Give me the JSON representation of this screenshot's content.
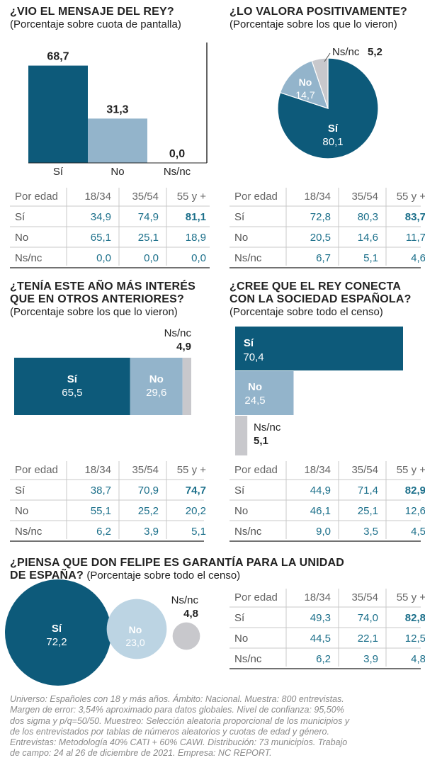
{
  "colors": {
    "dark": "#0d5a7a",
    "light": "#93b4cb",
    "pale": "#bcd4e3",
    "grey": "#c8c8cc",
    "teal_text": "#1b6f8a"
  },
  "chart_data": [
    {
      "id": "vio",
      "type": "bar",
      "title": "¿VIO EL MENSAJE DEL REY?",
      "subtitle": "(Porcentaje sobre cuota de pantalla)",
      "categories": [
        "Sí",
        "No",
        "Ns/nc"
      ],
      "values": [
        68.7,
        31.3,
        0.0
      ],
      "value_labels": [
        "68,7",
        "31,3",
        "0,0"
      ],
      "ylim": [
        0,
        70
      ],
      "table": {
        "header": [
          "Por edad",
          "18/34",
          "35/54",
          "55 y +"
        ],
        "rows": [
          [
            "Sí",
            "34,9",
            "74,9",
            "81,1"
          ],
          [
            "No",
            "65,1",
            "25,1",
            "18,9"
          ],
          [
            "Ns/nc",
            "0,0",
            "0,0",
            "0,0"
          ]
        ]
      }
    },
    {
      "id": "valora",
      "type": "pie",
      "title": "¿LO VALORA POSITIVAMENTE?",
      "subtitle": "(Porcentaje sobre los que lo vieron)",
      "categories": [
        "Sí",
        "No",
        "Ns/nc"
      ],
      "values": [
        80.1,
        14.7,
        5.2
      ],
      "value_labels": [
        "80,1",
        "14,7",
        "5,2"
      ],
      "table": {
        "header": [
          "Por edad",
          "18/34",
          "35/54",
          "55 y +"
        ],
        "rows": [
          [
            "Sí",
            "72,8",
            "80,3",
            "83,7"
          ],
          [
            "No",
            "20,5",
            "14,6",
            "11,7"
          ],
          [
            "Ns/nc",
            "6,7",
            "5,1",
            "4,6"
          ]
        ]
      }
    },
    {
      "id": "interes",
      "type": "bar",
      "title_lines": [
        "¿TENÍA ESTE AÑO MÁS INTERÉS",
        "QUE EN OTROS ANTERIORES?"
      ],
      "subtitle": "(Porcentaje sobre los que lo vieron)",
      "categories": [
        "Sí",
        "No",
        "Ns/nc"
      ],
      "values": [
        65.5,
        29.6,
        4.9
      ],
      "value_labels": [
        "65,5",
        "29,6",
        "4,9"
      ],
      "table": {
        "header": [
          "Por edad",
          "18/34",
          "35/54",
          "55 y +"
        ],
        "rows": [
          [
            "Sí",
            "38,7",
            "70,9",
            "74,7"
          ],
          [
            "No",
            "55,1",
            "25,2",
            "20,2"
          ],
          [
            "Ns/nc",
            "6,2",
            "3,9",
            "5,1"
          ]
        ]
      }
    },
    {
      "id": "conecta",
      "type": "bar",
      "title_lines": [
        "¿CREE QUE EL REY CONECTA",
        "CON LA SOCIEDAD ESPAÑOLA?"
      ],
      "subtitle": "(Porcentaje sobre todo el censo)",
      "categories": [
        "Sí",
        "No",
        "Ns/nc"
      ],
      "values": [
        70.4,
        24.5,
        5.1
      ],
      "value_labels": [
        "70,4",
        "24,5",
        "5,1"
      ],
      "xlim": [
        0,
        70.4
      ],
      "table": {
        "header": [
          "Por edad",
          "18/34",
          "35/54",
          "55 y +"
        ],
        "rows": [
          [
            "Sí",
            "44,9",
            "71,4",
            "82,9"
          ],
          [
            "No",
            "46,1",
            "25,1",
            "12,6"
          ],
          [
            "Ns/nc",
            "9,0",
            "3,5",
            "4,5"
          ]
        ]
      }
    },
    {
      "id": "garantia",
      "type": "bubble",
      "title_lines": [
        "¿PIENSA QUE DON FELIPE ES GARANTÍA PARA LA UNIDAD",
        "DE ESPAÑA?"
      ],
      "subtitle": "(Porcentaje sobre todo el censo)",
      "categories": [
        "Sí",
        "No",
        "Ns/nc"
      ],
      "values": [
        72.2,
        23.0,
        4.8
      ],
      "value_labels": [
        "72,2",
        "23,0",
        "4,8"
      ],
      "table": {
        "header": [
          "Por edad",
          "18/34",
          "35/54",
          "55 y +"
        ],
        "rows": [
          [
            "Sí",
            "49,3",
            "74,0",
            "82,8"
          ],
          [
            "No",
            "44,5",
            "22,1",
            "12,5"
          ],
          [
            "Ns/nc",
            "6,2",
            "3,9",
            "4,8"
          ]
        ]
      }
    }
  ],
  "footer_lines": [
    "Universo: Españoles con 18 y más años. Ámbito: Nacional. Muestra: 800 entrevistas.",
    "Margen de error: 3,54% aproximado para datos globales.  Nivel de confianza: 95,50%",
    "dos sigma y p/q=50/50. Muestreo: Selección aleatoria proporcional de los municipios y",
    "de los entrevistados por tablas de números aleatorios y cuotas de edad y género.",
    "Entrevistas: Metodología 40% CATI + 60% CAWI. Distribución:  73 municipios. Trabajo",
    "de campo: 24 al 26 de diciembre de 2021.  Empresa: NC REPORT."
  ]
}
